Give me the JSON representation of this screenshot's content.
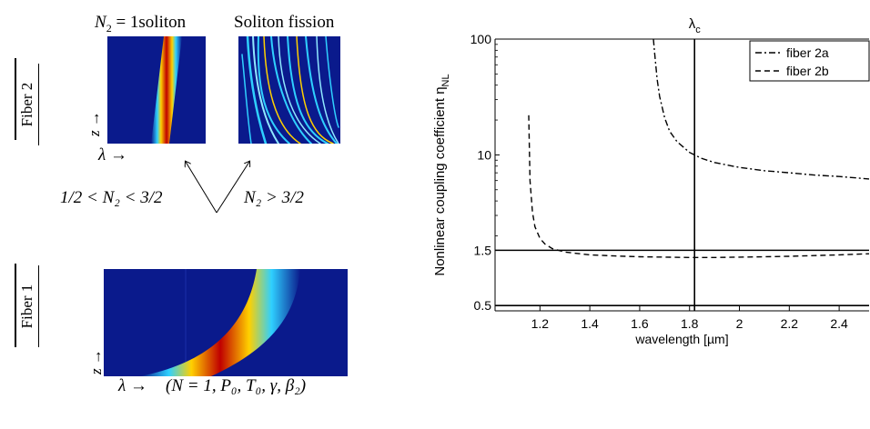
{
  "left": {
    "fiber2_label": "Fiber 2",
    "fiber1_label": "Fiber 1",
    "top_left_caption_math": "N",
    "top_left_caption_sub": "2",
    "top_left_caption_eq": "= 1",
    "top_left_caption_word": "soliton",
    "top_right_caption": "Soliton fission",
    "z_arrow": "z →",
    "lambda_arrow_top": "λ →",
    "condition_left": "1/2 < N₂ < 3/2",
    "condition_right": "N₂ > 3/2",
    "lambda_arrow_bottom": "λ →",
    "params": "(N = 1, P₀, T₀, γ, β₂)",
    "colors": {
      "background": "#0a1a8c",
      "hot": "#c00000",
      "warm": "#ffd000",
      "cool": "#2fd0ff"
    }
  },
  "chart_data": {
    "type": "line",
    "title": "λc",
    "title_main": "λ",
    "title_sub": "c",
    "xlabel": "wavelength [µm]",
    "ylabel": "Nonlinear coupling coefficient η",
    "ylabel_sub": "NL",
    "x_scale": "linear",
    "y_scale": "log",
    "xlim": [
      1.02,
      2.52
    ],
    "ylim": [
      0.45,
      100
    ],
    "xticks": [
      1.2,
      1.4,
      1.6,
      1.8,
      2,
      2.2,
      2.4
    ],
    "xtick_labels": [
      "1.2",
      "1.4",
      "1.6",
      "1.8",
      "2",
      "2.2",
      "2.4"
    ],
    "yticks": [
      0.5,
      1.5,
      10,
      100
    ],
    "ytick_labels": [
      "0.5",
      "1.5",
      "10",
      "100"
    ],
    "hlines": [
      1.5,
      0.5
    ],
    "vline": 1.82,
    "legend_position": "top-right",
    "series": [
      {
        "name": "fiber 2a",
        "style": "dash-dot",
        "x": [
          1.655,
          1.66,
          1.67,
          1.68,
          1.7,
          1.72,
          1.75,
          1.8,
          1.85,
          1.9,
          2.0,
          2.1,
          2.2,
          2.3,
          2.4,
          2.52
        ],
        "y": [
          100,
          75,
          45,
          32,
          21,
          16,
          13,
          10.5,
          9.3,
          8.6,
          7.8,
          7.3,
          7.0,
          6.7,
          6.5,
          6.2
        ]
      },
      {
        "name": "fiber 2b",
        "style": "dashed",
        "x": [
          1.155,
          1.16,
          1.17,
          1.18,
          1.2,
          1.22,
          1.25,
          1.3,
          1.4,
          1.5,
          1.6,
          1.7,
          1.8,
          1.9,
          2.0,
          2.1,
          2.2,
          2.3,
          2.4,
          2.52
        ],
        "y": [
          22,
          6,
          3.2,
          2.4,
          1.9,
          1.7,
          1.55,
          1.45,
          1.37,
          1.34,
          1.32,
          1.31,
          1.3,
          1.3,
          1.31,
          1.32,
          1.33,
          1.35,
          1.37,
          1.4
        ]
      }
    ]
  }
}
